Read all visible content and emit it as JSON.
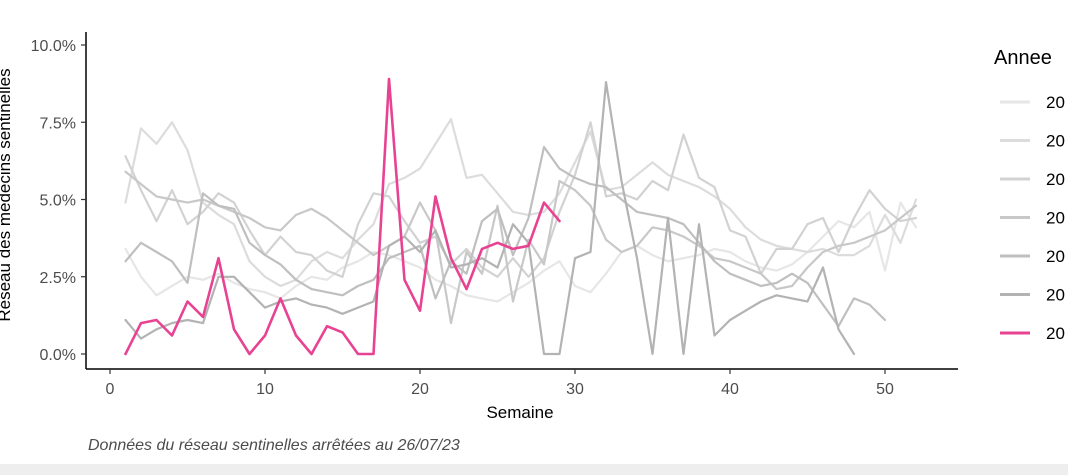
{
  "chart_data": {
    "type": "line",
    "xlabel": "Semaine",
    "ylabel": "Réseau des médecins sentinelles",
    "xlim": [
      0,
      53
    ],
    "ylim": [
      0,
      10
    ],
    "xticks": [
      0,
      10,
      20,
      30,
      40,
      50
    ],
    "yticks": [
      0,
      2.5,
      5,
      7.5,
      10
    ],
    "ytick_labels": [
      "0.0%",
      "2.5%",
      "5.0%",
      "7.5%",
      "10.0%"
    ],
    "grid": false,
    "legend": {
      "title": "Annee",
      "position": "right"
    },
    "caption": "Données du réseau sentinelles arrêtées au  26/07/23",
    "series": [
      {
        "name": "20",
        "color": "#e6e6e6",
        "x": [
          1,
          2,
          3,
          4,
          5,
          6,
          7,
          8,
          9,
          10,
          11,
          12,
          13,
          14,
          15,
          16,
          17,
          18,
          19,
          20,
          21,
          22,
          23,
          24,
          25,
          26,
          27,
          28,
          29,
          30,
          31,
          32,
          33,
          34,
          35,
          36,
          37,
          38,
          39,
          40,
          41,
          42,
          43,
          44,
          45,
          46,
          47,
          48,
          49,
          50,
          51,
          52
        ],
        "y": [
          3.4,
          2.5,
          1.9,
          2.2,
          2.5,
          2.4,
          2.6,
          2.3,
          2.1,
          2.0,
          1.8,
          2.2,
          2.5,
          2.4,
          2.8,
          3.0,
          3.3,
          3.2,
          3.0,
          2.8,
          2.4,
          2.2,
          1.9,
          1.8,
          1.7,
          2.0,
          2.3,
          2.7,
          3.0,
          2.2,
          2.0,
          2.6,
          3.3,
          3.5,
          3.2,
          3.0,
          3.1,
          3.2,
          3.4,
          3.3,
          3.0,
          2.8,
          2.7,
          2.9,
          3.3,
          3.8,
          4.3,
          4.1,
          4.6,
          2.7,
          4.9,
          4.1
        ]
      },
      {
        "name": "20",
        "color": "#dcdcdc",
        "x": [
          1,
          2,
          3,
          4,
          5,
          6,
          7,
          8,
          9,
          10,
          11,
          12,
          13,
          14,
          15,
          16,
          17,
          18,
          19,
          20,
          21,
          22,
          23,
          24,
          25,
          26,
          27,
          28,
          29,
          30,
          31,
          32,
          33,
          34,
          35,
          36,
          37,
          38,
          39,
          40,
          41,
          42,
          43,
          44,
          45,
          46,
          47,
          48,
          49,
          50,
          51,
          52
        ],
        "y": [
          4.9,
          7.3,
          6.8,
          7.5,
          6.6,
          4.9,
          4.5,
          4.2,
          3.0,
          2.5,
          2.2,
          2.4,
          3.0,
          3.3,
          3.1,
          3.7,
          4.2,
          5.5,
          5.7,
          6.0,
          6.8,
          7.6,
          5.7,
          5.8,
          5.2,
          4.6,
          4.5,
          4.6,
          5.2,
          6.2,
          7.2,
          5.3,
          5.4,
          5.8,
          6.2,
          5.8,
          5.6,
          5.4,
          5.1,
          4.7,
          4.1,
          3.7,
          3.5,
          3.4,
          3.3,
          3.4,
          3.2,
          3.2,
          3.5,
          4.5,
          3.6,
          5.0
        ]
      },
      {
        "name": "20",
        "color": "#d2d2d2",
        "x": [
          1,
          2,
          3,
          4,
          5,
          6,
          7,
          8,
          9,
          10,
          11,
          12,
          13,
          14,
          15,
          16,
          17,
          18,
          19,
          20,
          21,
          22,
          23,
          24,
          25,
          26,
          27,
          28,
          29,
          30,
          31,
          32,
          33,
          34,
          35,
          36,
          37,
          38,
          39,
          40,
          41,
          42,
          43,
          44,
          45,
          46,
          47,
          48,
          49,
          50,
          51,
          52
        ],
        "y": [
          6.4,
          5.3,
          4.3,
          5.3,
          4.2,
          4.6,
          5.2,
          4.9,
          4.0,
          3.2,
          3.8,
          3.3,
          3.2,
          2.7,
          2.5,
          4.2,
          5.2,
          5.1,
          4.3,
          3.6,
          3.8,
          2.9,
          3.4,
          2.8,
          2.5,
          3.1,
          2.5,
          3.1,
          4.6,
          5.8,
          7.5,
          5.1,
          5.2,
          5.0,
          5.6,
          5.3,
          7.1,
          5.7,
          5.4,
          4.0,
          3.8,
          2.6,
          3.4,
          3.4,
          4.2,
          4.4,
          3.3,
          4.4,
          5.3,
          4.7,
          4.3,
          4.4
        ]
      },
      {
        "name": "20",
        "color": "#c8c8c8",
        "x": [
          1,
          2,
          3,
          4,
          5,
          6,
          7,
          8,
          9,
          10,
          11,
          12,
          13,
          14,
          15,
          16,
          17,
          18,
          19,
          20,
          21,
          22,
          23,
          24,
          25,
          26,
          27,
          28,
          29,
          30,
          31,
          32,
          33,
          34,
          35,
          36,
          37,
          38,
          39,
          40,
          41,
          42,
          43,
          44,
          45,
          46,
          47,
          48,
          49,
          50,
          51,
          52
        ],
        "y": [
          5.9,
          5.5,
          5.1,
          5.0,
          4.9,
          5.0,
          4.8,
          4.6,
          4.4,
          4.1,
          4.0,
          4.5,
          4.7,
          4.4,
          4.0,
          3.6,
          3.2,
          3.5,
          3.8,
          4.9,
          4.0,
          1.0,
          3.3,
          2.6,
          4.8,
          1.7,
          3.7,
          2.9,
          5.6,
          5.3,
          4.8,
          3.7,
          3.3,
          3.5,
          4.1,
          4.0,
          3.8,
          3.5,
          3.1,
          3.0,
          2.8,
          2.6,
          2.1,
          2.2,
          2.8,
          3.3,
          3.5,
          3.6,
          3.8,
          4.0,
          4.4,
          4.8
        ]
      },
      {
        "name": "20",
        "color": "#bfbfbf",
        "x": [
          1,
          2,
          3,
          4,
          5,
          6,
          7,
          8,
          9,
          10,
          11,
          12,
          13,
          14,
          15,
          16,
          17,
          18,
          19,
          20,
          21,
          22,
          23,
          24,
          25,
          26,
          27,
          28,
          29,
          30,
          31,
          32,
          33,
          34,
          35,
          36,
          37,
          38,
          39,
          40,
          41,
          42,
          43,
          44,
          45,
          46,
          47,
          48,
          49,
          50
        ],
        "y": [
          3.0,
          3.6,
          3.3,
          3.0,
          2.3,
          5.2,
          4.8,
          4.7,
          3.6,
          3.2,
          2.9,
          2.4,
          2.1,
          2.0,
          1.9,
          2.2,
          2.4,
          3.1,
          3.3,
          3.5,
          1.8,
          3.0,
          2.6,
          4.3,
          4.7,
          3.2,
          4.4,
          6.7,
          6.0,
          5.7,
          5.5,
          5.4,
          5.0,
          4.6,
          4.5,
          4.4,
          4.2,
          3.6,
          3.0,
          2.6,
          2.4,
          2.2,
          2.3,
          2.6,
          2.3,
          1.6,
          0.9,
          1.8,
          1.6,
          1.1
        ]
      },
      {
        "name": "20",
        "color": "#b3b3b3",
        "x": [
          1,
          2,
          3,
          4,
          5,
          6,
          7,
          8,
          9,
          10,
          11,
          12,
          13,
          14,
          15,
          16,
          17,
          18,
          19,
          20,
          21,
          22,
          23,
          24,
          25,
          26,
          27,
          28,
          29,
          30,
          31,
          32,
          33,
          34,
          35,
          36,
          37,
          38,
          39,
          40,
          41,
          42,
          43,
          44,
          45,
          46,
          47,
          48
        ],
        "y": [
          1.1,
          0.5,
          0.8,
          1.0,
          1.1,
          1.0,
          2.5,
          2.5,
          2.0,
          1.5,
          1.7,
          1.8,
          1.6,
          1.5,
          1.3,
          1.5,
          1.7,
          3.5,
          3.8,
          3.3,
          4.0,
          2.8,
          2.9,
          3.1,
          2.8,
          4.2,
          3.6,
          0.0,
          0.0,
          3.1,
          3.3,
          8.8,
          5.6,
          3.1,
          0.0,
          4.4,
          0.0,
          4.2,
          0.6,
          1.1,
          1.4,
          1.7,
          1.9,
          1.8,
          1.7,
          2.8,
          0.8,
          0.0
        ]
      },
      {
        "name": "20",
        "color": "#e84393",
        "x": [
          1,
          2,
          3,
          4,
          5,
          6,
          7,
          8,
          9,
          10,
          11,
          12,
          13,
          14,
          15,
          16,
          17,
          18,
          19,
          20,
          21,
          22,
          23,
          24,
          25,
          26,
          27,
          28,
          29
        ],
        "y": [
          0.0,
          1.0,
          1.1,
          0.6,
          1.7,
          1.2,
          3.1,
          0.8,
          0.0,
          0.6,
          1.8,
          0.6,
          0.0,
          0.9,
          0.7,
          0.0,
          0.0,
          8.9,
          2.4,
          1.4,
          5.1,
          3.1,
          2.1,
          3.4,
          3.6,
          3.4,
          3.5,
          4.9,
          4.3
        ]
      }
    ]
  }
}
